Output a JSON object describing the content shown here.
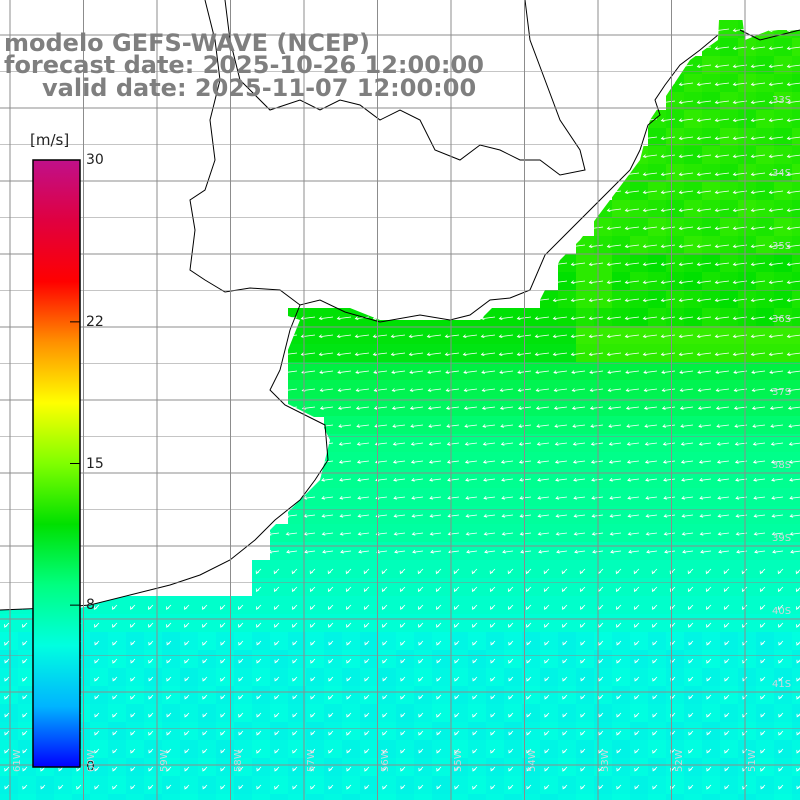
{
  "header": {
    "line1": "modelo GEFS-WAVE (NCEP)",
    "line2": "forecast date: 2025-10-26 12:00:00",
    "line3": "valid date: 2025-11-07 12:00:00"
  },
  "colorbar": {
    "unit": "[m/s]",
    "ticks": [
      "30",
      "22",
      "15",
      "8",
      "0"
    ],
    "tick_values": [
      30,
      22,
      15,
      8,
      0
    ],
    "colors": [
      "#0000ff",
      "#00b4ff",
      "#00ffe0",
      "#00ff80",
      "#00e000",
      "#80ff00",
      "#ffff00",
      "#ff9000",
      "#ff0000",
      "#e00040",
      "#c0108a"
    ]
  },
  "map": {
    "lat_labels": [
      "33S",
      "34S",
      "35S",
      "36S",
      "37S",
      "38S",
      "39S",
      "40S",
      "41S"
    ],
    "lon_labels": [
      "61W",
      "60W",
      "59W",
      "58W",
      "57W",
      "56W",
      "55W",
      "54W",
      "53W",
      "52W",
      "51W"
    ],
    "land_color": "#ffffff",
    "grid_color": "#8c8c8c",
    "arrow_color": "#ffffff"
  }
}
